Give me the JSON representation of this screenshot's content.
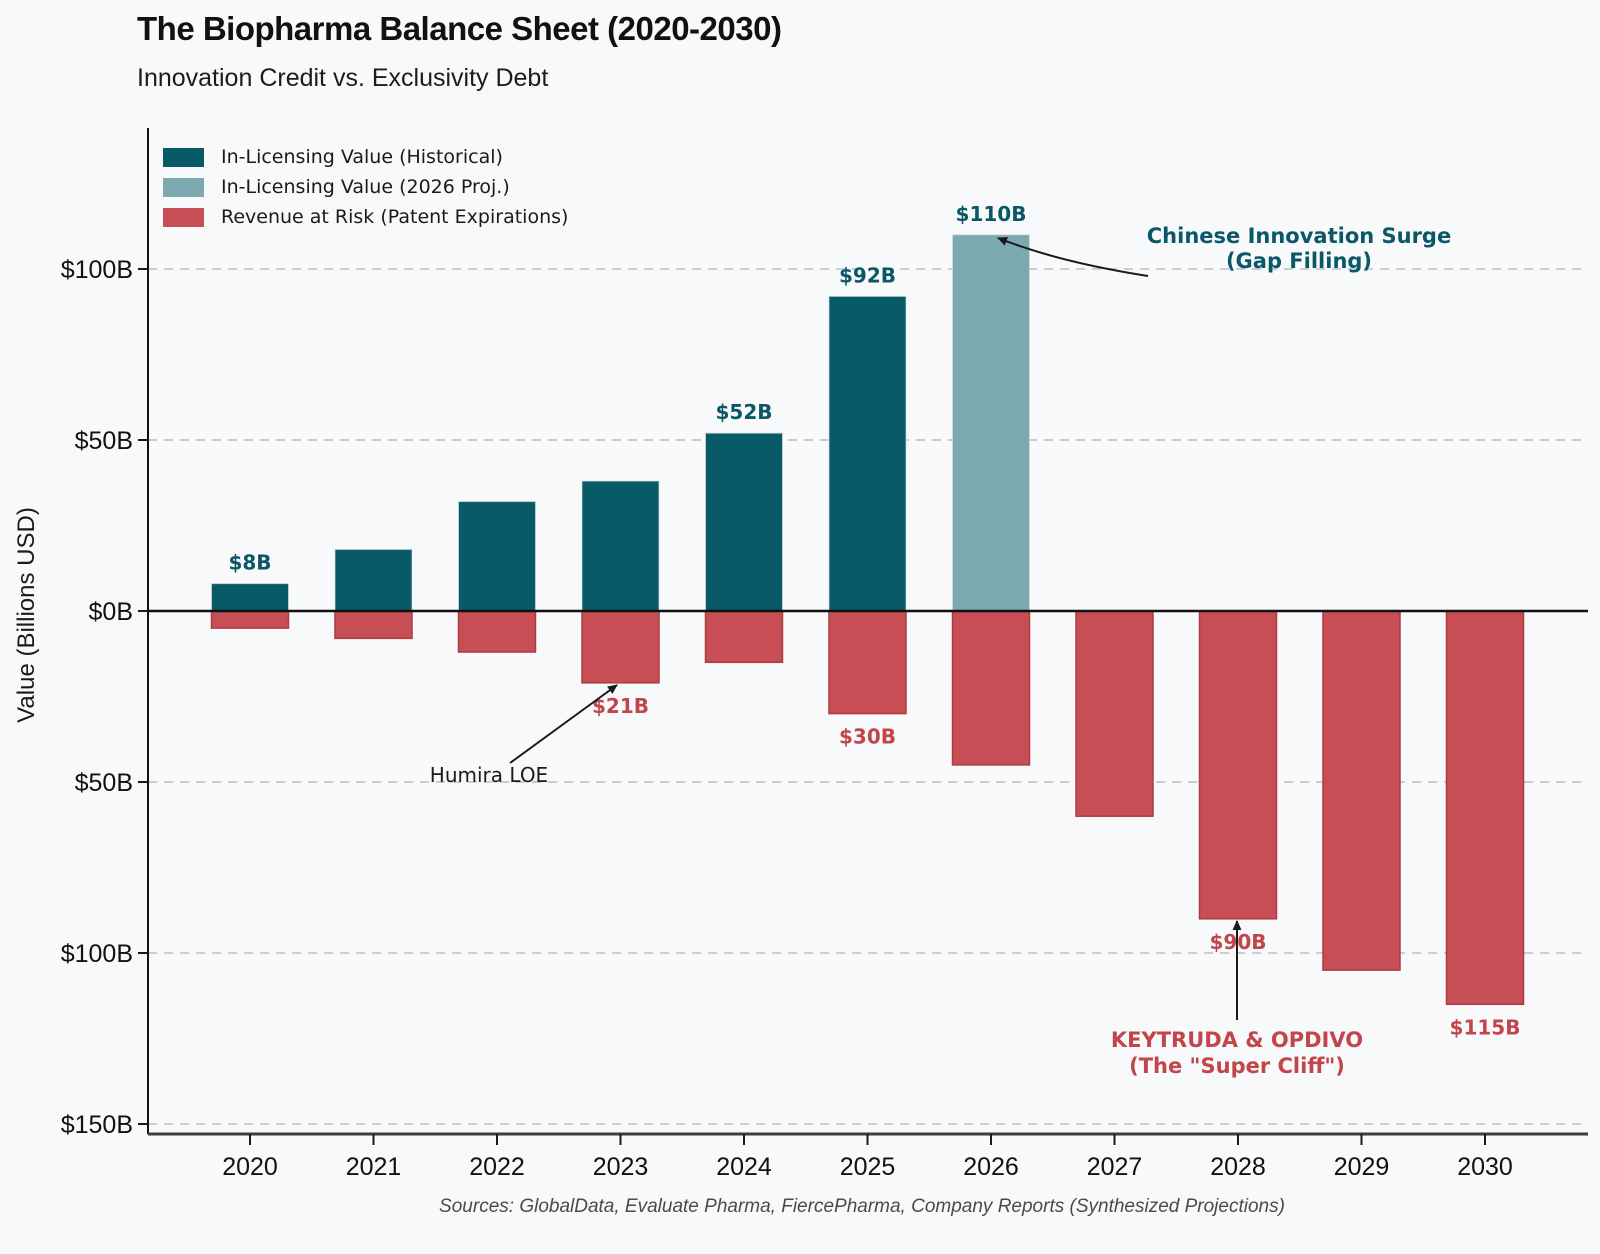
{
  "page": {
    "title": "The Biopharma Balance Sheet (2020-2030)",
    "subtitle": "Innovation Credit vs. Exclusivity Debt",
    "source": "Sources: GlobalData, Evaluate Pharma, FiercePharma, Company Reports (Synthesized Projections)"
  },
  "colors": {
    "background": "#F8F9FA",
    "teal_dark": "#075A66",
    "teal_light": "#7CA9AF",
    "red": "#C64E54",
    "red_edge": "#AE3B41",
    "teal_text": "#0A5767",
    "red_text": "#C2454C",
    "grid": "#C9CDD1",
    "axis": "#1a1a1a"
  },
  "chart_data": {
    "type": "bar",
    "title": "The Biopharma Balance Sheet (2020-2030)",
    "subtitle": "Innovation Credit vs. Exclusivity Debt",
    "xlabel": "",
    "ylabel": "Value (Billions USD)",
    "ylim": [
      -153,
      141
    ],
    "grid": "horizontal-dashed",
    "legend_position": "upper-left",
    "categories": [
      "2020",
      "2021",
      "2022",
      "2023",
      "2024",
      "2025",
      "2026",
      "2027",
      "2028",
      "2029",
      "2030"
    ],
    "series": [
      {
        "key": "revenue_risk",
        "name": "Revenue at Risk (Patent Expirations)",
        "color": "#C64E54",
        "values": [
          -5,
          -8,
          -12,
          -21,
          -15,
          -30,
          -45,
          -60,
          -90,
          -105,
          -115
        ]
      },
      {
        "key": "inlicensing_hist",
        "name": "In-Licensing Value (Historical)",
        "color": "#075A66",
        "values": [
          8,
          18,
          32,
          38,
          52,
          92,
          null,
          null,
          null,
          null,
          null
        ]
      },
      {
        "key": "inlicensing_proj",
        "name": "In-Licensing Value (2026 Proj.)",
        "color": "#7CA9AF",
        "values": [
          null,
          null,
          null,
          null,
          null,
          null,
          110,
          null,
          null,
          null,
          null
        ]
      }
    ],
    "legend_order": [
      "inlicensing_hist",
      "inlicensing_proj",
      "revenue_risk"
    ],
    "y_ticks": [
      {
        "v": 100,
        "label": "$100B"
      },
      {
        "v": 50,
        "label": "$50B"
      },
      {
        "v": 0,
        "label": "$0B"
      },
      {
        "v": -50,
        "label": "$50B"
      },
      {
        "v": -100,
        "label": "$100B"
      },
      {
        "v": -150,
        "label": "$150B"
      }
    ],
    "bar_labels": [
      {
        "category": "2020",
        "series": "inlicensing_hist",
        "text": "$8B",
        "placement": "above"
      },
      {
        "category": "2024",
        "series": "inlicensing_hist",
        "text": "$52B",
        "placement": "above"
      },
      {
        "category": "2025",
        "series": "inlicensing_hist",
        "text": "$92B",
        "placement": "above"
      },
      {
        "category": "2026",
        "series": "inlicensing_proj",
        "text": "$110B",
        "placement": "above"
      },
      {
        "category": "2023",
        "series": "revenue_risk",
        "text": "$21B",
        "placement": "below"
      },
      {
        "category": "2025",
        "series": "revenue_risk",
        "text": "$30B",
        "placement": "below"
      },
      {
        "category": "2028",
        "series": "revenue_risk",
        "text": "$90B",
        "placement": "below"
      },
      {
        "category": "2030",
        "series": "revenue_risk",
        "text": "$115B",
        "placement": "below"
      }
    ],
    "annotations": {
      "humira": {
        "text": "Humira LOE",
        "points_to": "2023 revenue at risk bar"
      },
      "chinese_surge": {
        "line1": "Chinese Innovation Surge",
        "line2": "(Gap Filling)",
        "points_to": "2026 projected in-licensing bar"
      },
      "super_cliff": {
        "line1": "KEYTRUDA & OPDIVO",
        "line2": "(The \"Super Cliff\")",
        "points_to": "2028 revenue at risk bar"
      }
    }
  }
}
